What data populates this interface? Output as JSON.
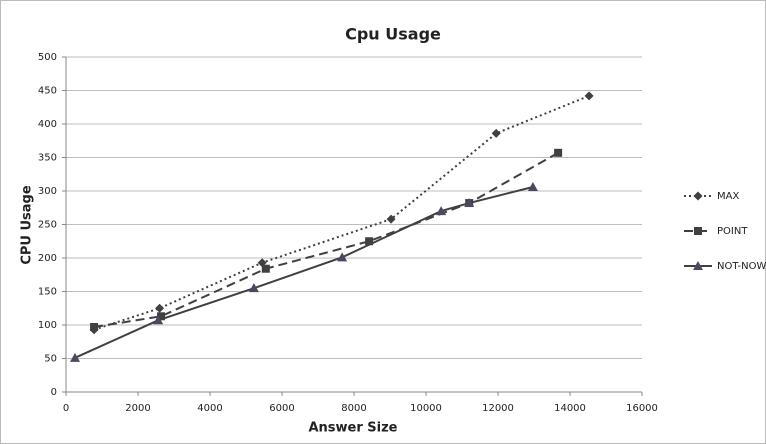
{
  "chart_data": {
    "type": "line",
    "title": "Cpu Usage",
    "x_label": "Answer Size",
    "y_label": "CPU Usage",
    "xlim": [
      0,
      16000
    ],
    "xticks": [
      0,
      2000,
      4000,
      6000,
      8000,
      10000,
      12000,
      14000,
      16000
    ],
    "ylim": [
      0,
      500
    ],
    "yticks": [
      0,
      50,
      100,
      150,
      200,
      250,
      300,
      350,
      400,
      450,
      500
    ],
    "grid": true,
    "legend": "right",
    "series": [
      {
        "name": "MAX",
        "color": "#404040",
        "dash": "dotted",
        "marker": "diamond",
        "x": [
          780,
          2600,
          5450,
          9030,
          11950,
          14530
        ],
        "values": [
          93,
          125,
          193,
          258,
          386,
          442
        ]
      },
      {
        "name": "POINT",
        "color": "#404040",
        "dash": "dashed",
        "marker": "square",
        "x": [
          780,
          2640,
          5550,
          8420,
          11200,
          13670
        ],
        "values": [
          97,
          113,
          184,
          225,
          282,
          357
        ]
      },
      {
        "name": "NOT-NOW",
        "color": "#404040",
        "dash": "solid",
        "marker": "triangle",
        "x": [
          250,
          2560,
          5220,
          7670,
          10420,
          11200,
          12970
        ],
        "values": [
          51,
          107,
          155,
          201,
          270,
          282,
          306
        ]
      }
    ]
  }
}
